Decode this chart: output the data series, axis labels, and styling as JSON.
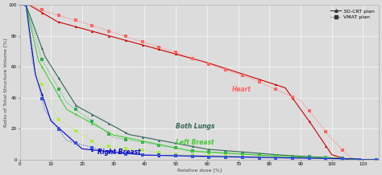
{
  "xlabel": "Relative dose [%]",
  "ylabel": "Ratio of Total Structure Volume [%]",
  "xlim": [
    0,
    115
  ],
  "ylim": [
    0,
    100
  ],
  "xticks": [
    0,
    10,
    20,
    30,
    40,
    50,
    60,
    70,
    80,
    90,
    100,
    110
  ],
  "yticks": [
    0,
    20,
    40,
    60,
    80,
    100
  ],
  "bg_color": "#dcdcdc",
  "grid_color": "#ffffff",
  "c_heart_3dcrt": "#cc0000",
  "c_heart_vmat": "#ff6666",
  "c_lungs_3dcrt": "#336655",
  "c_lungs_vmat": "#33aa55",
  "c_lb_3dcrt": "#44cc33",
  "c_lb_vmat": "#aaee44",
  "c_rb_3dcrt": "#0000bb",
  "c_rb_vmat": "#3355dd",
  "label_fontsize": 4.5,
  "tick_fontsize": 4.0,
  "annotation_fontsize": 5.5,
  "legend_fontsize": 4.5
}
